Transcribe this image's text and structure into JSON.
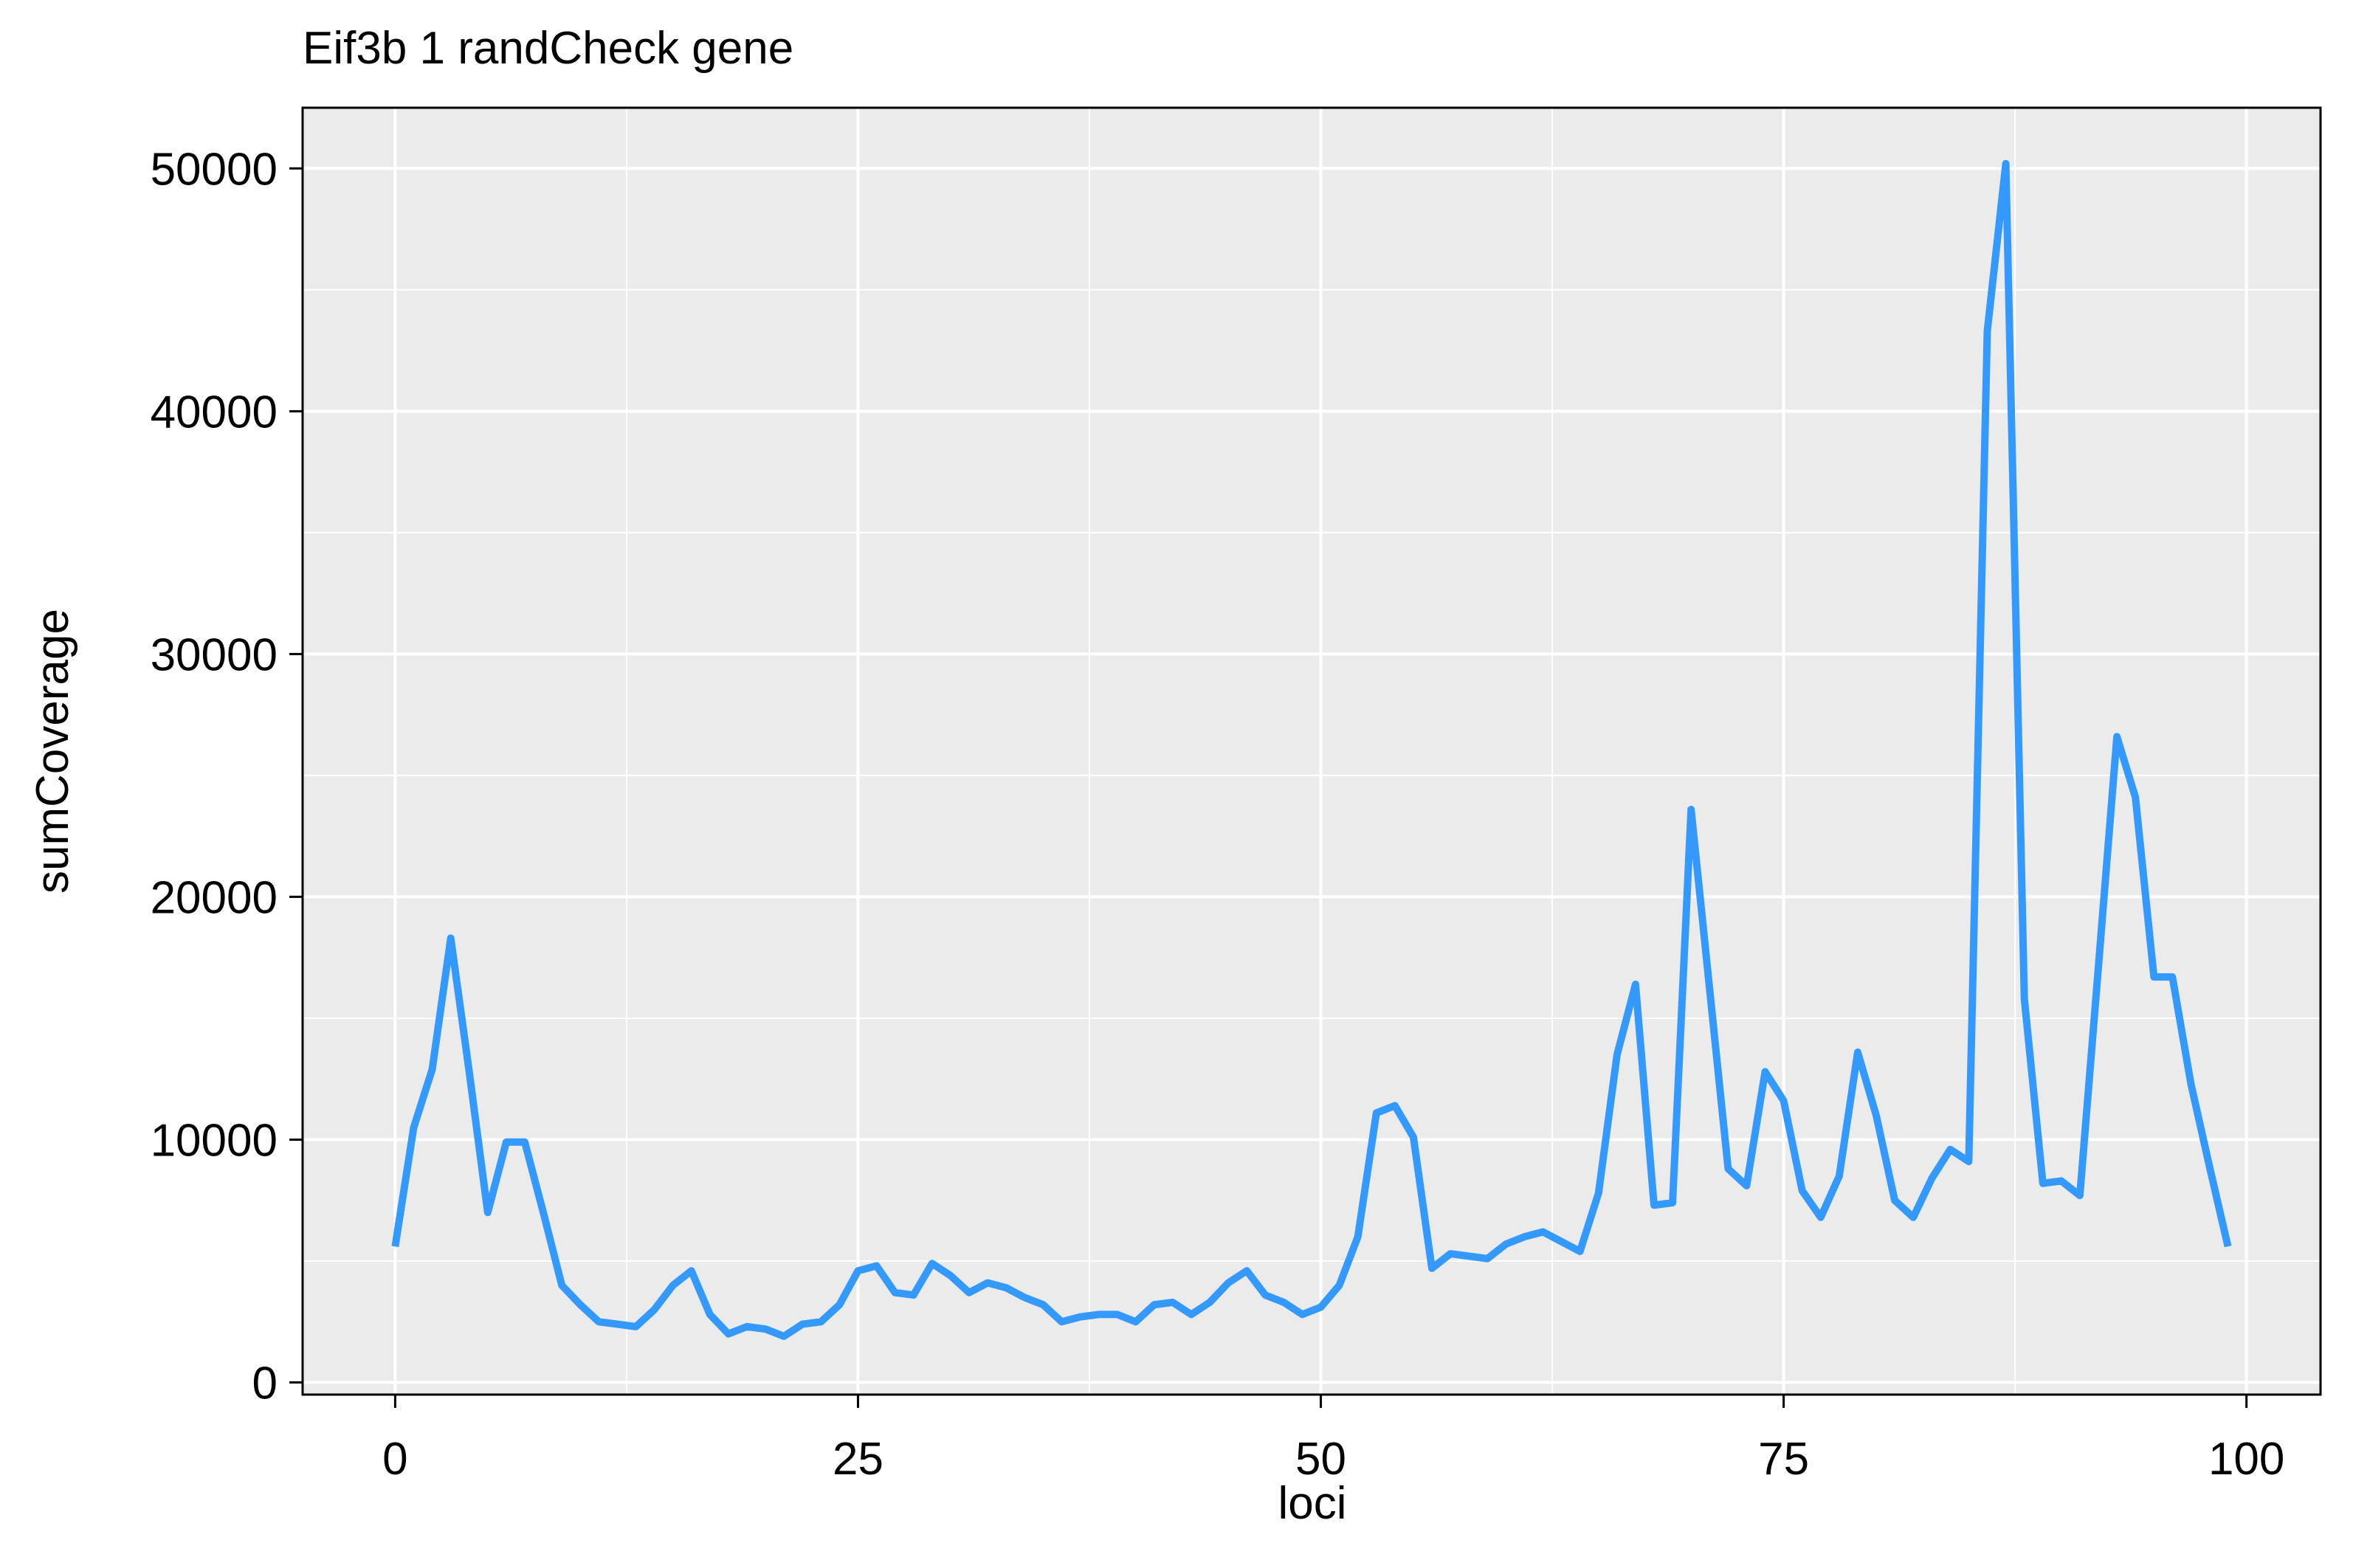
{
  "chart_data": {
    "type": "line",
    "title": "Eif3b 1 randCheck gene",
    "xlabel": "loci",
    "ylabel": "sumCoverage",
    "xlim": [
      -5,
      104
    ],
    "ylim": [
      -500,
      52500
    ],
    "xticks": [
      0,
      25,
      50,
      75,
      100
    ],
    "xtick_labels": [
      "0",
      "25",
      "50",
      "75",
      "100"
    ],
    "yticks": [
      0,
      10000,
      20000,
      30000,
      40000,
      50000
    ],
    "ytick_labels": [
      "0",
      "10000",
      "20000",
      "30000",
      "40000",
      "50000"
    ],
    "x_minor_grid": [
      12.5,
      37.5,
      62.5,
      87.5
    ],
    "y_minor_grid": [
      5000,
      15000,
      25000,
      35000,
      45000
    ],
    "grid": true,
    "colors": {
      "panel_background": "#EBEBEB",
      "grid": "#FFFFFF",
      "line": "#3399FF",
      "frame": "#000000"
    },
    "series": [
      {
        "x": [
          0,
          1,
          2,
          3,
          4,
          5,
          6,
          7,
          8,
          9,
          10,
          11,
          12,
          13,
          14,
          15,
          16,
          17,
          18,
          19,
          20,
          21,
          22,
          23,
          24,
          25,
          26,
          27,
          28,
          29,
          30,
          31,
          32,
          33,
          34,
          35,
          36,
          37,
          38,
          39,
          40,
          41,
          42,
          43,
          44,
          45,
          46,
          47,
          48,
          49,
          50,
          51,
          52,
          53,
          54,
          55,
          56,
          57,
          58,
          59,
          60,
          61,
          62,
          63,
          64,
          65,
          66,
          67,
          68,
          69,
          70,
          71,
          72,
          73,
          74,
          75,
          76,
          77,
          78,
          79,
          80,
          81,
          82,
          83,
          84,
          85,
          86,
          87,
          88,
          89,
          90,
          91,
          92,
          93,
          94,
          95,
          96,
          97,
          98,
          99
        ],
        "values": [
          5600,
          10500,
          12900,
          18300,
          12800,
          7000,
          9900,
          9900,
          7000,
          4000,
          3200,
          2500,
          2400,
          2300,
          3000,
          4000,
          4600,
          2800,
          2000,
          2300,
          2200,
          1900,
          2400,
          2500,
          3200,
          4600,
          4800,
          3700,
          3600,
          4900,
          4400,
          3700,
          4100,
          3900,
          3500,
          3200,
          2500,
          2700,
          2800,
          2800,
          2500,
          3200,
          3300,
          2800,
          3300,
          4100,
          4600,
          3600,
          3300,
          2800,
          3100,
          4000,
          6000,
          11100,
          11400,
          10100,
          4700,
          5300,
          5200,
          5100,
          5700,
          6000,
          6200,
          5800,
          5400,
          7800,
          13500,
          16400,
          7300,
          7400,
          23600,
          16200,
          8800,
          8100,
          12800,
          11600,
          7900,
          6800,
          8500,
          13600,
          11000,
          7500,
          6800,
          8400,
          9600,
          9100,
          43300,
          50200,
          15800,
          8200,
          8300,
          7700,
          17100,
          26600,
          24100,
          16700,
          16700,
          12300,
          8900,
          5600
        ]
      }
    ]
  }
}
